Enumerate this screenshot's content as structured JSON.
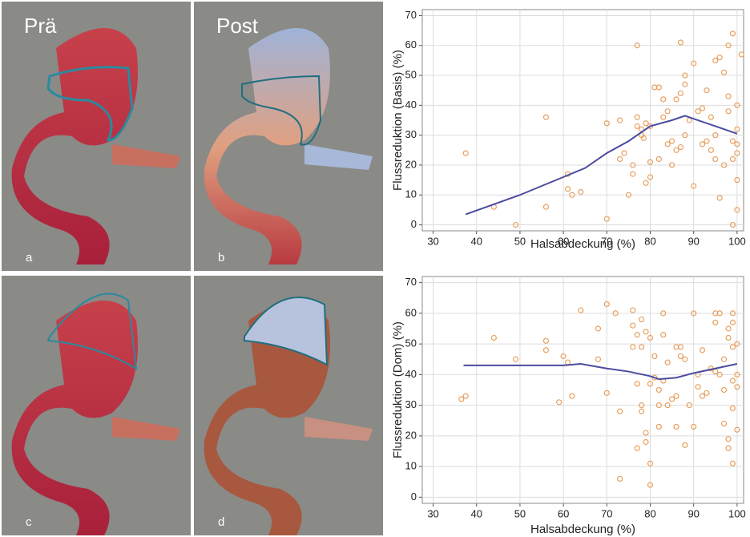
{
  "images": {
    "labels": [
      "Prä",
      "Post",
      "a",
      "b",
      "c",
      "d"
    ]
  },
  "chart_data": [
    {
      "type": "scatter",
      "x_label": "Halsabdeckung (%)",
      "y_label": "Flussreduktion (Basis) (%)",
      "xlim": [
        27.5,
        101.5
      ],
      "ylim": [
        -2,
        72
      ],
      "xticks": [
        30,
        40,
        50,
        60,
        70,
        80,
        90,
        100
      ],
      "yticks": [
        0,
        10,
        20,
        30,
        40,
        50,
        60,
        70
      ],
      "grid": true,
      "series": [
        {
          "type": "scatter",
          "color": "#e8a060",
          "x": [
            37.5,
            44,
            49,
            56,
            56,
            61,
            61,
            62,
            64,
            70,
            70,
            73,
            73,
            74,
            75,
            76,
            76,
            77,
            77,
            77,
            78,
            78,
            78.5,
            79,
            79,
            80,
            80,
            80,
            81,
            82,
            82,
            83,
            83,
            84,
            84,
            85,
            85,
            86,
            86,
            87,
            87,
            87,
            88,
            88,
            88,
            89,
            90,
            90,
            91,
            92,
            92,
            93,
            93,
            94,
            94,
            95,
            95,
            95,
            96,
            96,
            97,
            97,
            98,
            98,
            98,
            99,
            99,
            99,
            99,
            100,
            100,
            100,
            100,
            100,
            100,
            101
          ],
          "values": [
            24,
            6,
            0,
            36,
            6,
            17,
            12,
            10,
            11,
            2,
            34,
            35,
            22,
            24,
            10,
            17,
            20,
            60,
            33,
            36,
            30,
            32,
            29,
            14,
            34,
            16,
            21,
            33,
            46,
            46,
            22,
            42,
            36,
            38,
            27,
            28,
            20,
            42,
            25,
            61,
            44,
            26,
            47,
            50,
            30,
            35,
            54,
            13,
            38,
            39,
            27,
            28,
            45,
            36,
            25,
            55,
            30,
            22,
            56,
            9,
            51,
            20,
            43,
            38,
            60,
            64,
            0,
            22,
            28,
            40,
            32,
            27,
            24,
            15,
            5,
            57
          ]
        },
        {
          "type": "line",
          "color": "#4b4ba0",
          "x": [
            37.5,
            50,
            60,
            65,
            70,
            75,
            80,
            85,
            88,
            90,
            95,
            100
          ],
          "values": [
            3.5,
            10,
            16,
            19,
            24,
            28,
            33,
            35,
            36.5,
            35.5,
            33,
            30.5
          ]
        }
      ]
    },
    {
      "type": "scatter",
      "x_label": "Halsabdeckung (%)",
      "y_label": "Flussreduktion (Dom) (%)",
      "xlim": [
        27.5,
        101.5
      ],
      "ylim": [
        -2,
        72
      ],
      "xticks": [
        30,
        40,
        50,
        60,
        70,
        80,
        90,
        100
      ],
      "yticks": [
        0,
        10,
        20,
        30,
        40,
        50,
        60,
        70
      ],
      "grid": true,
      "series": [
        {
          "type": "scatter",
          "color": "#e8a060",
          "x": [
            36.5,
            37.5,
            44,
            49,
            56,
            56,
            59,
            60,
            61,
            62,
            64,
            68,
            68,
            70,
            70,
            72,
            73,
            73,
            76,
            76,
            76,
            77,
            77,
            77,
            78,
            78,
            78,
            78,
            79,
            79,
            79,
            80,
            80,
            80,
            80,
            81,
            81,
            82,
            82,
            82,
            83,
            83,
            83,
            84,
            84,
            85,
            86,
            86,
            86,
            87,
            87,
            88,
            88,
            89,
            90,
            90,
            91,
            91,
            92,
            92,
            93,
            94,
            95,
            95,
            95,
            96,
            96,
            97,
            97,
            97,
            98,
            98,
            98,
            98,
            99,
            99,
            99,
            99,
            99,
            99,
            100,
            100,
            100,
            100
          ],
          "values": [
            32,
            33,
            52,
            45,
            51,
            48,
            31,
            46,
            44,
            33,
            61,
            55,
            45,
            63,
            34,
            60,
            28,
            6,
            61,
            56,
            49,
            16,
            37,
            53,
            58,
            30,
            28,
            49,
            21,
            18,
            54,
            52,
            37,
            11,
            4,
            46,
            39,
            30,
            23,
            35,
            60,
            53,
            38,
            30,
            44,
            32,
            49,
            23,
            33,
            49,
            46,
            45,
            17,
            30,
            60,
            23,
            40,
            36,
            48,
            33,
            34,
            42,
            60,
            57,
            41,
            60,
            40,
            45,
            35,
            24,
            55,
            19,
            16,
            52,
            60,
            57,
            49,
            38,
            29,
            11,
            50,
            40,
            36,
            22
          ]
        },
        {
          "type": "line",
          "color": "#4b4ba0",
          "x": [
            37,
            50,
            60,
            64,
            70,
            75,
            80,
            82,
            86,
            90,
            95,
            100
          ],
          "values": [
            43,
            43,
            43,
            43.5,
            42,
            41,
            39.5,
            38.5,
            39,
            40.5,
            42,
            43.5
          ]
        }
      ]
    }
  ]
}
